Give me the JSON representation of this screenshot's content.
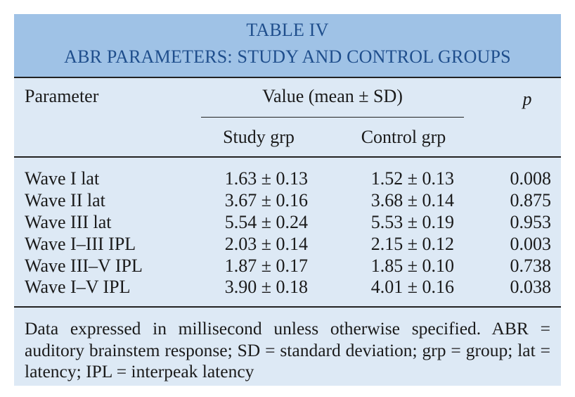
{
  "table": {
    "title_line1": "TABLE IV",
    "title_line2": "ABR PARAMETERS: STUDY AND CONTROL GROUPS",
    "header": {
      "parameter": "Parameter",
      "value": "Value (mean ± SD)",
      "p": "p",
      "study": "Study grp",
      "control": "Control grp"
    },
    "rows": [
      {
        "parameter": "Wave I lat",
        "study": "1.63 ± 0.13",
        "control": "1.52 ± 0.13",
        "p": "0.008"
      },
      {
        "parameter": "Wave II lat",
        "study": "3.67 ± 0.16",
        "control": "3.68 ± 0.14",
        "p": "0.875"
      },
      {
        "parameter": "Wave III lat",
        "study": "5.54 ± 0.24",
        "control": "5.53 ± 0.19",
        "p": "0.953"
      },
      {
        "parameter": "Wave I–III IPL",
        "study": "2.03 ± 0.14",
        "control": "2.15 ± 0.12",
        "p": "0.003"
      },
      {
        "parameter": "Wave III–V IPL",
        "study": "1.87 ± 0.17",
        "control": "1.85 ± 0.10",
        "p": "0.738"
      },
      {
        "parameter": "Wave I–V IPL",
        "study": "3.90 ± 0.18",
        "control": "4.01 ± 0.16",
        "p": "0.038"
      }
    ],
    "footnote": "Data expressed in millisecond unless otherwise specified. ABR = auditory brainstem response; SD = standard deviation; grp = group; lat = latency; IPL = interpeak latency"
  },
  "colors": {
    "title_band": "#9fc2e6",
    "body_background": "#dde9f5",
    "title_text": "#1f4e8c"
  }
}
